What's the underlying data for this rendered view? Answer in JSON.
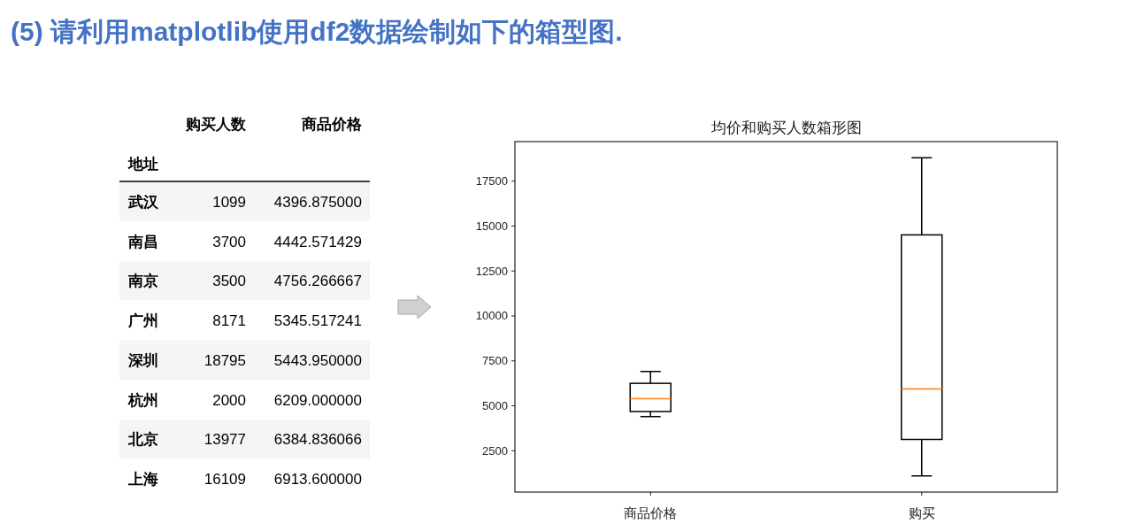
{
  "chart_data": [
    {
      "type": "other",
      "title": "(5) 请利用matplotlib使用df2数据绘制如下的箱型图.",
      "ylabel": "地址",
      "categories": [
        "武汉",
        "南昌",
        "南京",
        "广州",
        "深圳",
        "杭州",
        "北京",
        "上海"
      ],
      "series": [
        {
          "name": "购买人数",
          "values": [
            1099,
            3700,
            3500,
            8171,
            18795,
            2000,
            13977,
            16109
          ]
        },
        {
          "name": "商品价格",
          "values": [
            4396.875,
            4442.571429,
            4756.266667,
            5345.517241,
            5443.95,
            6209.0,
            6384.836066,
            6913.6
          ],
          "value_labels": [
            "4396.875000",
            "4442.571429",
            "4756.266667",
            "5345.517241",
            "5443.950000",
            "6209.000000",
            "6384.836066",
            "6913.600000"
          ]
        }
      ],
      "data_labels": true
    },
    {
      "type": "box",
      "title": "均价和购买人数箱形图",
      "categories": [
        "商品价格",
        "购买"
      ],
      "color": "#000000",
      "boxes": [
        {
          "low": 4400,
          "q1": 4680,
          "median": 5390,
          "q3": 6250,
          "high": 6910
        },
        {
          "low": 1100,
          "q1": 3130,
          "median": 5940,
          "q3": 14510,
          "high": 18800
        }
      ],
      "ylim": [
        200,
        19700
      ],
      "yticks": [
        2500,
        5000,
        7500,
        10000,
        12500,
        15000,
        17500
      ]
    }
  ]
}
